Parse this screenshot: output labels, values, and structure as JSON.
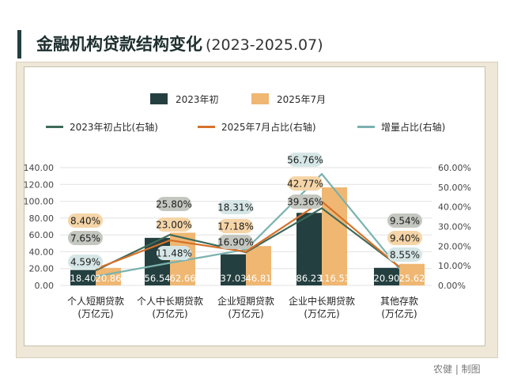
{
  "title": "金融机构贷款结构变化",
  "title_suffix": "(2023-2025.07)",
  "footer": "农健 | 制图",
  "legend": {
    "bar_2023": "2023年初",
    "bar_2025": "2025年7月",
    "line_2023": "2023年初占比(右轴)",
    "line_2025": "2025年7月占比(右轴)",
    "line_incr": "增量占比(右轴)"
  },
  "colors": {
    "bar_2023": "#243f3f",
    "bar_2025": "#efb772",
    "line_2023": "#3f6a5a",
    "line_2025": "#d5712a",
    "line_incr": "#79b2ae",
    "label_2023_bg": "#c3c7c0",
    "label_2025_bg": "#f5d5a8",
    "label_incr_bg": "#d6e6e6"
  },
  "chart_data": {
    "type": "bar",
    "title": "金融机构贷款结构变化",
    "categories": [
      "个人短期贷款",
      "个人中长期贷款",
      "企业短期贷款",
      "企业中长期贷款",
      "其他存款"
    ],
    "category_unit": "(万亿元)",
    "series": [
      {
        "name": "2023年初",
        "axis": "left",
        "kind": "bar",
        "values": [
          18.4,
          56.54,
          37.03,
          86.23,
          20.9
        ]
      },
      {
        "name": "2025年7月",
        "axis": "left",
        "kind": "bar",
        "values": [
          20.86,
          62.66,
          46.81,
          116.53,
          25.62
        ]
      },
      {
        "name": "2023年初占比(右轴)",
        "axis": "right",
        "kind": "line",
        "values": [
          7.65,
          25.8,
          16.9,
          39.36,
          9.54
        ]
      },
      {
        "name": "2025年7月占比(右轴)",
        "axis": "right",
        "kind": "line",
        "values": [
          8.4,
          23.0,
          17.18,
          42.77,
          9.4
        ]
      },
      {
        "name": "增量占比(右轴)",
        "axis": "right",
        "kind": "line",
        "values": [
          4.59,
          11.48,
          18.31,
          56.76,
          8.55
        ]
      }
    ],
    "bar_labels_2023": [
      "18.40",
      "56.54",
      "37.03",
      "86.23",
      "20.90"
    ],
    "bar_labels_2025": [
      "20.86",
      "62.66",
      "46.81",
      "116.53",
      "25.62"
    ],
    "line_labels_2023": [
      "7.65%",
      "25.80%",
      "16.90%",
      "39.36%",
      "9.54%"
    ],
    "line_labels_2025": [
      "8.40%",
      "23.00%",
      "17.18%",
      "42.77%",
      "9.40%"
    ],
    "line_labels_incr": [
      "4.59%",
      "11.48%",
      "18.31%",
      "56.76%",
      "8.55%"
    ],
    "left_axis": {
      "min": 0,
      "max": 140,
      "ticks": [
        "0.00",
        "20.00",
        "40.00",
        "60.00",
        "80.00",
        "100.00",
        "120.00",
        "140.00"
      ]
    },
    "right_axis": {
      "min": 0,
      "max": 60,
      "ticks": [
        "0.00%",
        "10.00%",
        "20.00%",
        "30.00%",
        "40.00%",
        "50.00%",
        "60.00%"
      ]
    },
    "ylim": [
      0,
      140
    ],
    "y2lim": [
      0,
      60
    ]
  }
}
